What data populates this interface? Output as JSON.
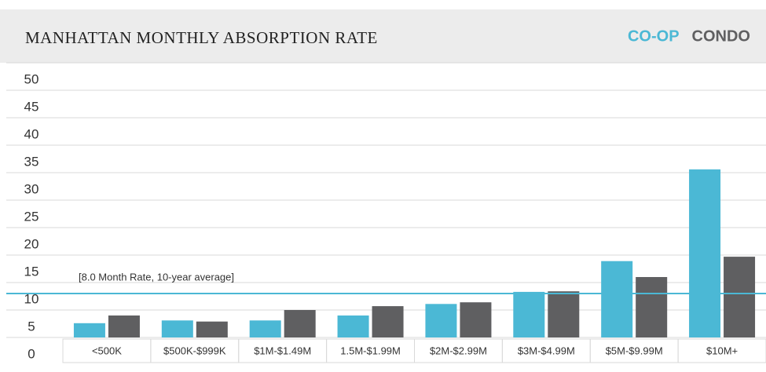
{
  "chart_data": {
    "type": "bar",
    "title": "MANHATTAN MONTHLY ABSORPTION RATE",
    "categories": [
      "<500K",
      "$500K-$999K",
      "$1M-$1.49M",
      "1.5M-$1.99M",
      "$2M-$2.99M",
      "$3M-$4.99M",
      "$5M-$9.99M",
      "$10M+"
    ],
    "series": [
      {
        "name": "CO-OP",
        "color": "#4bb8d5",
        "values": [
          2.6,
          3.1,
          3.1,
          4.0,
          6.1,
          8.3,
          13.9,
          30.6
        ]
      },
      {
        "name": "CONDO",
        "color": "#5f5f61",
        "values": [
          4.0,
          2.9,
          5.0,
          5.7,
          6.4,
          8.4,
          11.0,
          14.7
        ]
      }
    ],
    "ylim": [
      0,
      50
    ],
    "yticks": [
      0,
      5,
      10,
      15,
      20,
      25,
      30,
      35,
      40,
      45,
      50
    ],
    "grid": true,
    "annotation": {
      "text": "[8.0 Month Rate, 10-year average]",
      "value": 8.0,
      "color": "#4bb8d5"
    }
  }
}
